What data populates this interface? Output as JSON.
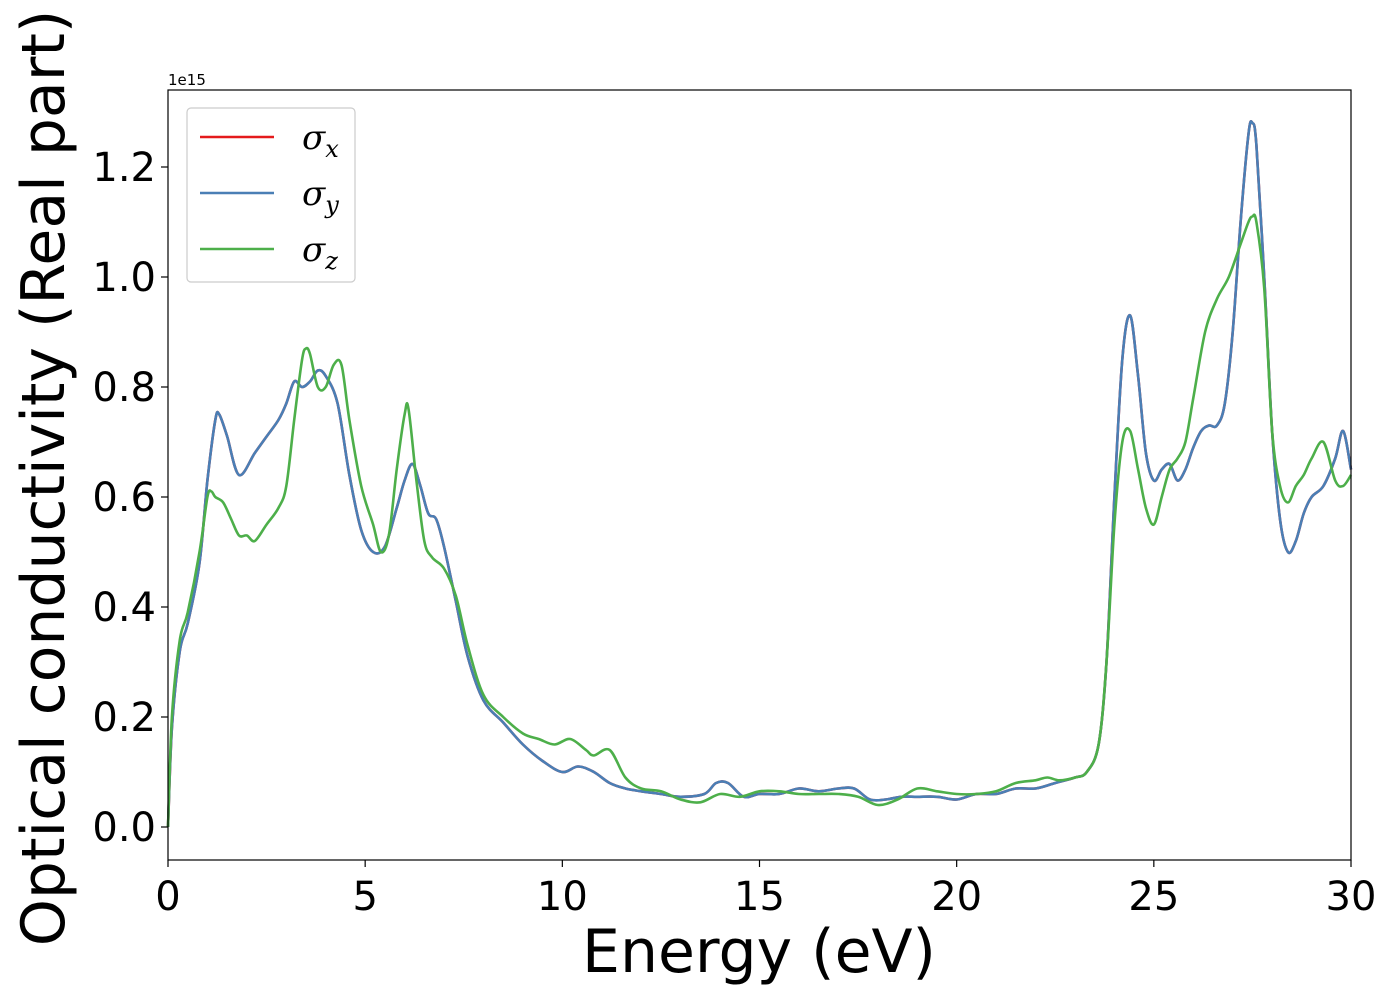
{
  "chart_data": {
    "type": "line",
    "xlabel": "Energy (eV)",
    "ylabel": "Optical conductivity (Real part)",
    "y_offset_text": "1e15",
    "xlim": [
      0,
      30
    ],
    "ylim": [
      -0.06,
      1.34
    ],
    "x_ticks": [
      0,
      5,
      10,
      15,
      20,
      25,
      30
    ],
    "x_tick_labels": [
      "0",
      "5",
      "10",
      "15",
      "20",
      "25",
      "30"
    ],
    "y_ticks": [
      0.0,
      0.2,
      0.4,
      0.6,
      0.8,
      1.0,
      1.2
    ],
    "y_tick_labels": [
      "0.0",
      "0.2",
      "0.4",
      "0.6",
      "0.8",
      "1.0",
      "1.2"
    ],
    "grid": false,
    "legend_position": "top-left",
    "series": [
      {
        "name": "σ",
        "subscript": "x",
        "color": "#e41a1c",
        "x": [
          0.0,
          0.1,
          0.3,
          0.5,
          0.8,
          1.0,
          1.2,
          1.3,
          1.5,
          1.8,
          2.2,
          2.5,
          2.8,
          3.0,
          3.2,
          3.4,
          3.6,
          3.8,
          4.0,
          4.3,
          4.6,
          4.9,
          5.2,
          5.5,
          5.8,
          6.0,
          6.2,
          6.4,
          6.6,
          6.8,
          7.0,
          7.3,
          7.6,
          8.0,
          8.5,
          9.0,
          9.5,
          10.0,
          10.4,
          10.8,
          11.2,
          11.6,
          12.0,
          12.5,
          13.0,
          13.6,
          13.9,
          14.2,
          14.6,
          15.0,
          15.5,
          16.0,
          16.5,
          17.0,
          17.4,
          17.8,
          18.2,
          18.6,
          19.0,
          19.5,
          20.0,
          20.5,
          21.0,
          21.5,
          22.0,
          22.5,
          23.0,
          23.3,
          23.6,
          23.8,
          24.0,
          24.2,
          24.4,
          24.6,
          24.8,
          25.0,
          25.2,
          25.4,
          25.6,
          25.8,
          26.0,
          26.2,
          26.4,
          26.6,
          26.8,
          27.0,
          27.2,
          27.4,
          27.5,
          27.6,
          27.8,
          28.0,
          28.2,
          28.4,
          28.6,
          28.8,
          29.0,
          29.3,
          29.6,
          29.8,
          30.0
        ],
        "y": [
          0.0,
          0.18,
          0.32,
          0.37,
          0.48,
          0.63,
          0.74,
          0.75,
          0.71,
          0.64,
          0.68,
          0.71,
          0.74,
          0.77,
          0.81,
          0.8,
          0.81,
          0.83,
          0.82,
          0.77,
          0.64,
          0.54,
          0.5,
          0.51,
          0.58,
          0.63,
          0.66,
          0.62,
          0.57,
          0.56,
          0.51,
          0.41,
          0.31,
          0.23,
          0.19,
          0.15,
          0.12,
          0.1,
          0.11,
          0.1,
          0.08,
          0.07,
          0.065,
          0.06,
          0.055,
          0.06,
          0.08,
          0.08,
          0.055,
          0.06,
          0.06,
          0.07,
          0.065,
          0.07,
          0.07,
          0.05,
          0.05,
          0.055,
          0.055,
          0.055,
          0.05,
          0.06,
          0.06,
          0.07,
          0.07,
          0.08,
          0.09,
          0.1,
          0.15,
          0.3,
          0.6,
          0.85,
          0.93,
          0.82,
          0.68,
          0.63,
          0.65,
          0.66,
          0.63,
          0.65,
          0.69,
          0.72,
          0.73,
          0.73,
          0.77,
          0.9,
          1.1,
          1.26,
          1.28,
          1.24,
          1.0,
          0.72,
          0.56,
          0.5,
          0.52,
          0.57,
          0.6,
          0.62,
          0.67,
          0.72,
          0.65
        ]
      },
      {
        "name": "σ",
        "subscript": "y",
        "color": "#4a7fb5",
        "x": [
          0.0,
          0.1,
          0.3,
          0.5,
          0.8,
          1.0,
          1.2,
          1.3,
          1.5,
          1.8,
          2.2,
          2.5,
          2.8,
          3.0,
          3.2,
          3.4,
          3.6,
          3.8,
          4.0,
          4.3,
          4.6,
          4.9,
          5.2,
          5.5,
          5.8,
          6.0,
          6.2,
          6.4,
          6.6,
          6.8,
          7.0,
          7.3,
          7.6,
          8.0,
          8.5,
          9.0,
          9.5,
          10.0,
          10.4,
          10.8,
          11.2,
          11.6,
          12.0,
          12.5,
          13.0,
          13.6,
          13.9,
          14.2,
          14.6,
          15.0,
          15.5,
          16.0,
          16.5,
          17.0,
          17.4,
          17.8,
          18.2,
          18.6,
          19.0,
          19.5,
          20.0,
          20.5,
          21.0,
          21.5,
          22.0,
          22.5,
          23.0,
          23.3,
          23.6,
          23.8,
          24.0,
          24.2,
          24.4,
          24.6,
          24.8,
          25.0,
          25.2,
          25.4,
          25.6,
          25.8,
          26.0,
          26.2,
          26.4,
          26.6,
          26.8,
          27.0,
          27.2,
          27.4,
          27.5,
          27.6,
          27.8,
          28.0,
          28.2,
          28.4,
          28.6,
          28.8,
          29.0,
          29.3,
          29.6,
          29.8,
          30.0
        ],
        "y": [
          0.0,
          0.18,
          0.32,
          0.37,
          0.48,
          0.63,
          0.74,
          0.75,
          0.71,
          0.64,
          0.68,
          0.71,
          0.74,
          0.77,
          0.81,
          0.8,
          0.81,
          0.83,
          0.82,
          0.77,
          0.64,
          0.54,
          0.5,
          0.51,
          0.58,
          0.63,
          0.66,
          0.62,
          0.57,
          0.56,
          0.51,
          0.41,
          0.31,
          0.23,
          0.19,
          0.15,
          0.12,
          0.1,
          0.11,
          0.1,
          0.08,
          0.07,
          0.065,
          0.06,
          0.055,
          0.06,
          0.08,
          0.08,
          0.055,
          0.06,
          0.06,
          0.07,
          0.065,
          0.07,
          0.07,
          0.05,
          0.05,
          0.055,
          0.055,
          0.055,
          0.05,
          0.06,
          0.06,
          0.07,
          0.07,
          0.08,
          0.09,
          0.1,
          0.15,
          0.3,
          0.6,
          0.85,
          0.93,
          0.82,
          0.68,
          0.63,
          0.65,
          0.66,
          0.63,
          0.65,
          0.69,
          0.72,
          0.73,
          0.73,
          0.77,
          0.9,
          1.1,
          1.26,
          1.28,
          1.24,
          1.0,
          0.72,
          0.56,
          0.5,
          0.52,
          0.57,
          0.6,
          0.62,
          0.67,
          0.72,
          0.65
        ]
      },
      {
        "name": "σ",
        "subscript": "z",
        "color": "#4daf4a",
        "x": [
          0.0,
          0.1,
          0.3,
          0.5,
          0.8,
          1.0,
          1.1,
          1.2,
          1.4,
          1.6,
          1.8,
          2.0,
          2.2,
          2.5,
          2.8,
          3.0,
          3.2,
          3.4,
          3.5,
          3.6,
          3.8,
          4.0,
          4.2,
          4.4,
          4.6,
          4.9,
          5.2,
          5.4,
          5.6,
          5.8,
          6.0,
          6.1,
          6.3,
          6.5,
          6.7,
          7.0,
          7.3,
          7.6,
          8.0,
          8.5,
          9.0,
          9.4,
          9.8,
          10.2,
          10.6,
          10.8,
          11.2,
          11.6,
          12.0,
          12.5,
          13.0,
          13.5,
          14.0,
          14.5,
          15.0,
          15.5,
          16.0,
          16.5,
          17.0,
          17.5,
          18.0,
          18.5,
          19.0,
          19.5,
          20.0,
          20.5,
          21.0,
          21.5,
          22.0,
          22.3,
          22.6,
          23.0,
          23.3,
          23.6,
          23.8,
          24.0,
          24.2,
          24.4,
          24.6,
          24.8,
          25.0,
          25.2,
          25.4,
          25.6,
          25.8,
          26.0,
          26.3,
          26.6,
          26.9,
          27.2,
          27.4,
          27.5,
          27.6,
          27.8,
          28.0,
          28.2,
          28.4,
          28.6,
          28.8,
          29.0,
          29.3,
          29.6,
          29.8,
          30.0
        ],
        "y": [
          0.0,
          0.2,
          0.34,
          0.39,
          0.5,
          0.6,
          0.61,
          0.6,
          0.59,
          0.56,
          0.53,
          0.53,
          0.52,
          0.55,
          0.58,
          0.62,
          0.74,
          0.85,
          0.87,
          0.86,
          0.8,
          0.8,
          0.84,
          0.84,
          0.74,
          0.62,
          0.55,
          0.5,
          0.53,
          0.65,
          0.75,
          0.76,
          0.63,
          0.52,
          0.49,
          0.47,
          0.42,
          0.33,
          0.24,
          0.2,
          0.17,
          0.16,
          0.15,
          0.16,
          0.14,
          0.13,
          0.14,
          0.09,
          0.07,
          0.065,
          0.05,
          0.045,
          0.06,
          0.055,
          0.065,
          0.065,
          0.06,
          0.06,
          0.06,
          0.055,
          0.04,
          0.05,
          0.07,
          0.065,
          0.06,
          0.06,
          0.065,
          0.08,
          0.085,
          0.09,
          0.085,
          0.09,
          0.1,
          0.15,
          0.3,
          0.55,
          0.7,
          0.72,
          0.65,
          0.58,
          0.55,
          0.6,
          0.65,
          0.67,
          0.7,
          0.78,
          0.9,
          0.96,
          1.0,
          1.06,
          1.1,
          1.11,
          1.1,
          0.98,
          0.72,
          0.62,
          0.59,
          0.62,
          0.64,
          0.67,
          0.7,
          0.63,
          0.62,
          0.64
        ]
      }
    ]
  }
}
